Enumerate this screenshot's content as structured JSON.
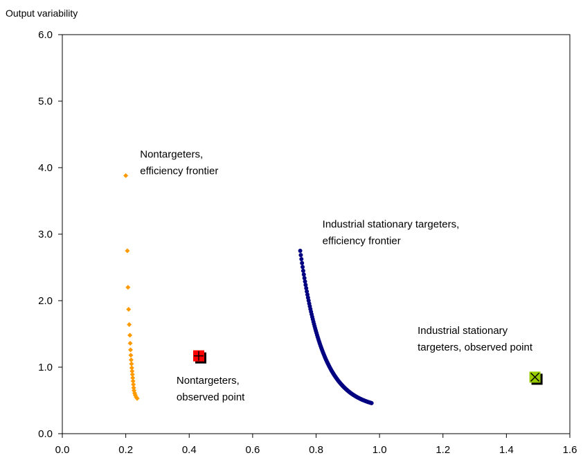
{
  "chart_data": {
    "type": "scatter",
    "title": "",
    "ylabel": "Output variability",
    "xlabel": "",
    "xlim": [
      0.0,
      1.6
    ],
    "ylim": [
      0.0,
      6.0
    ],
    "x_ticks": [
      "0.0",
      "0.2",
      "0.4",
      "0.6",
      "0.8",
      "1.0",
      "1.2",
      "1.4",
      "1.6"
    ],
    "y_ticks": [
      "0.0",
      "1.0",
      "2.0",
      "3.0",
      "4.0",
      "5.0",
      "6.0"
    ],
    "grid": false,
    "legend": "none",
    "colors": {
      "nontargeters_frontier": "#FF9900",
      "industrial_frontier": "#000080",
      "nontargeters_observed": "#FF0000",
      "industrial_observed": "#99CC00"
    },
    "series": [
      {
        "marker": "diamond",
        "color": "#FF9900",
        "x": [
          0.2,
          0.205,
          0.207,
          0.209,
          0.211,
          0.213,
          0.214,
          0.215,
          0.216,
          0.217,
          0.218,
          0.219,
          0.22,
          0.221,
          0.222,
          0.223,
          0.224,
          0.225,
          0.226,
          0.228,
          0.23,
          0.233,
          0.236
        ],
        "y": [
          3.88,
          2.75,
          2.2,
          1.87,
          1.64,
          1.48,
          1.36,
          1.26,
          1.18,
          1.11,
          1.05,
          0.99,
          0.94,
          0.89,
          0.84,
          0.79,
          0.74,
          0.69,
          0.65,
          0.61,
          0.58,
          0.55,
          0.53
        ]
      },
      {
        "marker": "circle",
        "color": "#000080",
        "x_range": [
          0.75,
          0.975
        ],
        "y_at_start": 2.75,
        "y_at_end": 0.46,
        "points": 120
      },
      {
        "marker": "square-plus",
        "color": "#FF0000",
        "x": [
          0.43
        ],
        "y": [
          1.17
        ]
      },
      {
        "marker": "square-x",
        "color": "#99CC00",
        "x": [
          1.49
        ],
        "y": [
          0.85
        ]
      }
    ],
    "annotations": [
      {
        "lines": [
          "Nontargeters,",
          "efficiency frontier"
        ]
      },
      {
        "lines": [
          "Industrial stationary targeters,",
          "efficiency frontier"
        ]
      },
      {
        "lines": [
          "Industrial stationary",
          "targeters, observed point"
        ]
      },
      {
        "lines": [
          "Nontargeters,",
          "observed point"
        ]
      }
    ]
  }
}
